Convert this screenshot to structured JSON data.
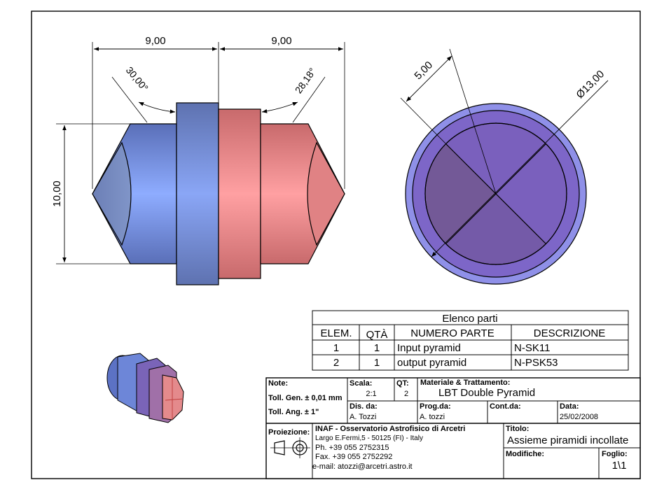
{
  "dimensions": {
    "left_width": "9,00",
    "right_width": "9,00",
    "left_angle": "30,00°",
    "right_angle": "28,18°",
    "height": "10,00",
    "circle_offset": "5,00",
    "diameter": "Ø13,00"
  },
  "parts_list": {
    "title": "Elenco parti",
    "headers": [
      "ELEM.",
      "QTÀ",
      "NUMERO PARTE",
      "DESCRIZIONE"
    ],
    "rows": [
      {
        "elem": "1",
        "qty": "1",
        "part": "Input pyramid",
        "desc": "N-SK11"
      },
      {
        "elem": "2",
        "qty": "1",
        "part": "output pyramid",
        "desc": "N-PSK53"
      }
    ]
  },
  "title_block": {
    "note_label": "Note:",
    "toll_gen_label": "Toll. Gen. ±",
    "toll_gen_value": "0,01 mm",
    "toll_ang_label": "Toll. Ang. ±",
    "toll_ang_value": "1\"",
    "scala_label": "Scala:",
    "scala_value": "2:1",
    "qt_label": "QT:",
    "qt_value": "2",
    "materiale_label": "Materiale & Trattamento:",
    "materiale_value": "LBT Double Pyramid",
    "dis_label": "Dis. da:",
    "dis_value": "A. Tozzi",
    "prog_label": "Prog.da:",
    "prog_value": "A. tozzi",
    "cont_label": "Cont.da:",
    "cont_value": "",
    "data_label": "Data:",
    "data_value": "25/02/2008",
    "proiezione_label": "Proiezione:",
    "org_name": "INAF - Osservatorio Astrofisico di Arcetri",
    "org_address": "Largo E.Fermi,5 - 50125 (FI) - Italy",
    "org_phone": "Ph.  +39 055 2752315",
    "org_fax": "Fax. +39 055 2752292",
    "org_email": "e-mail: atozzi@arcetri.astro.it",
    "titolo_label": "Titolo:",
    "titolo_value": "Assieme piramidi incollate",
    "modifiche_label": "Modifiche:",
    "foglio_label": "Foglio:",
    "foglio_value": "1\\1"
  },
  "colors": {
    "blue_part": "#8ea9ee",
    "red_part": "#f0999a",
    "disk_face": "#7b68c8",
    "disk_rim": "#8f8fe6"
  }
}
